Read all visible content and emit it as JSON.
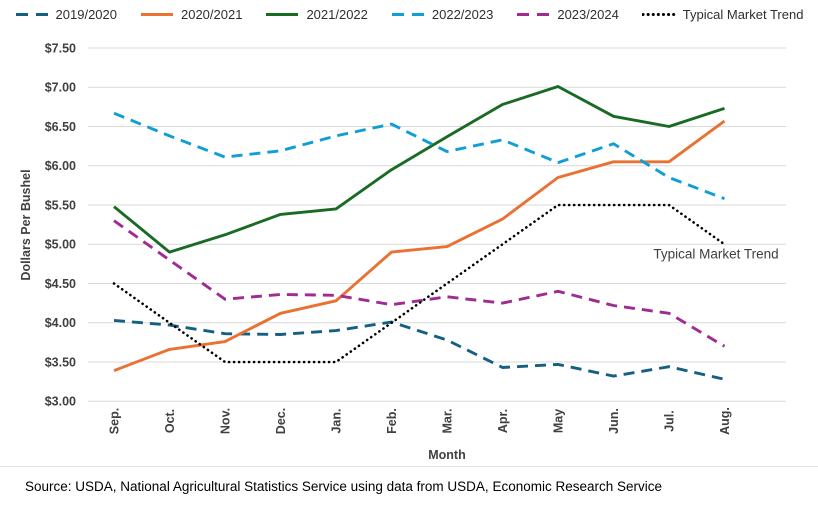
{
  "chart_data": {
    "type": "line",
    "title": "",
    "xlabel": "Month",
    "ylabel": "Dollars Per Bushel",
    "ylim": [
      3.0,
      7.5
    ],
    "y_tick_labels": [
      "$7.50",
      "$7.00",
      "$6.50",
      "$6.00",
      "$5.50",
      "$5.00",
      "$4.50",
      "$4.00",
      "$3.50",
      "$3.00"
    ],
    "categories": [
      "Sep.",
      "Oct.",
      "Nov.",
      "Dec.",
      "Jan.",
      "Feb.",
      "Mar.",
      "Apr.",
      "May",
      "Jun.",
      "Jul.",
      "Aug."
    ],
    "grid": true,
    "legend_position": "top",
    "grid_color": "#d9d9d9",
    "axis_text_color": "#404040",
    "series": [
      {
        "name": "2019/2020",
        "color": "#156082",
        "line_style": "dashed",
        "values": [
          4.03,
          3.97,
          3.86,
          3.85,
          3.9,
          4.01,
          3.78,
          3.43,
          3.47,
          3.32,
          3.44,
          3.28
        ]
      },
      {
        "name": "2020/2021",
        "color": "#E97132",
        "line_style": "solid",
        "values": [
          3.39,
          3.66,
          3.76,
          4.12,
          4.28,
          4.9,
          4.97,
          5.32,
          5.85,
          6.05,
          6.05,
          6.57
        ]
      },
      {
        "name": "2021/2022",
        "color": "#196B24",
        "line_style": "solid",
        "values": [
          5.48,
          4.9,
          5.12,
          5.38,
          5.45,
          5.95,
          6.37,
          6.78,
          7.01,
          6.63,
          6.5,
          6.73
        ]
      },
      {
        "name": "2022/2023",
        "color": "#0F9ED5",
        "line_style": "dashed",
        "values": [
          6.67,
          6.38,
          6.11,
          6.19,
          6.38,
          6.53,
          6.18,
          6.33,
          6.04,
          6.28,
          5.85,
          5.58
        ]
      },
      {
        "name": "2023/2024",
        "color": "#A02B93",
        "line_style": "dashed",
        "values": [
          5.3,
          4.8,
          4.3,
          4.36,
          4.35,
          4.23,
          4.33,
          4.25,
          4.4,
          4.22,
          4.12,
          3.7
        ]
      },
      {
        "name": "Typical Market Trend",
        "color": "#000000",
        "line_style": "dotted",
        "values": [
          4.5,
          4.0,
          3.5,
          3.5,
          3.5,
          4.0,
          4.5,
          5.0,
          5.5,
          5.5,
          5.5,
          5.0
        ]
      }
    ],
    "annotation": {
      "text": "Typical Market Trend"
    }
  },
  "footer": {
    "source": "Source: USDA, National Agricultural Statistics Service using data from USDA, Economic Research Service"
  }
}
